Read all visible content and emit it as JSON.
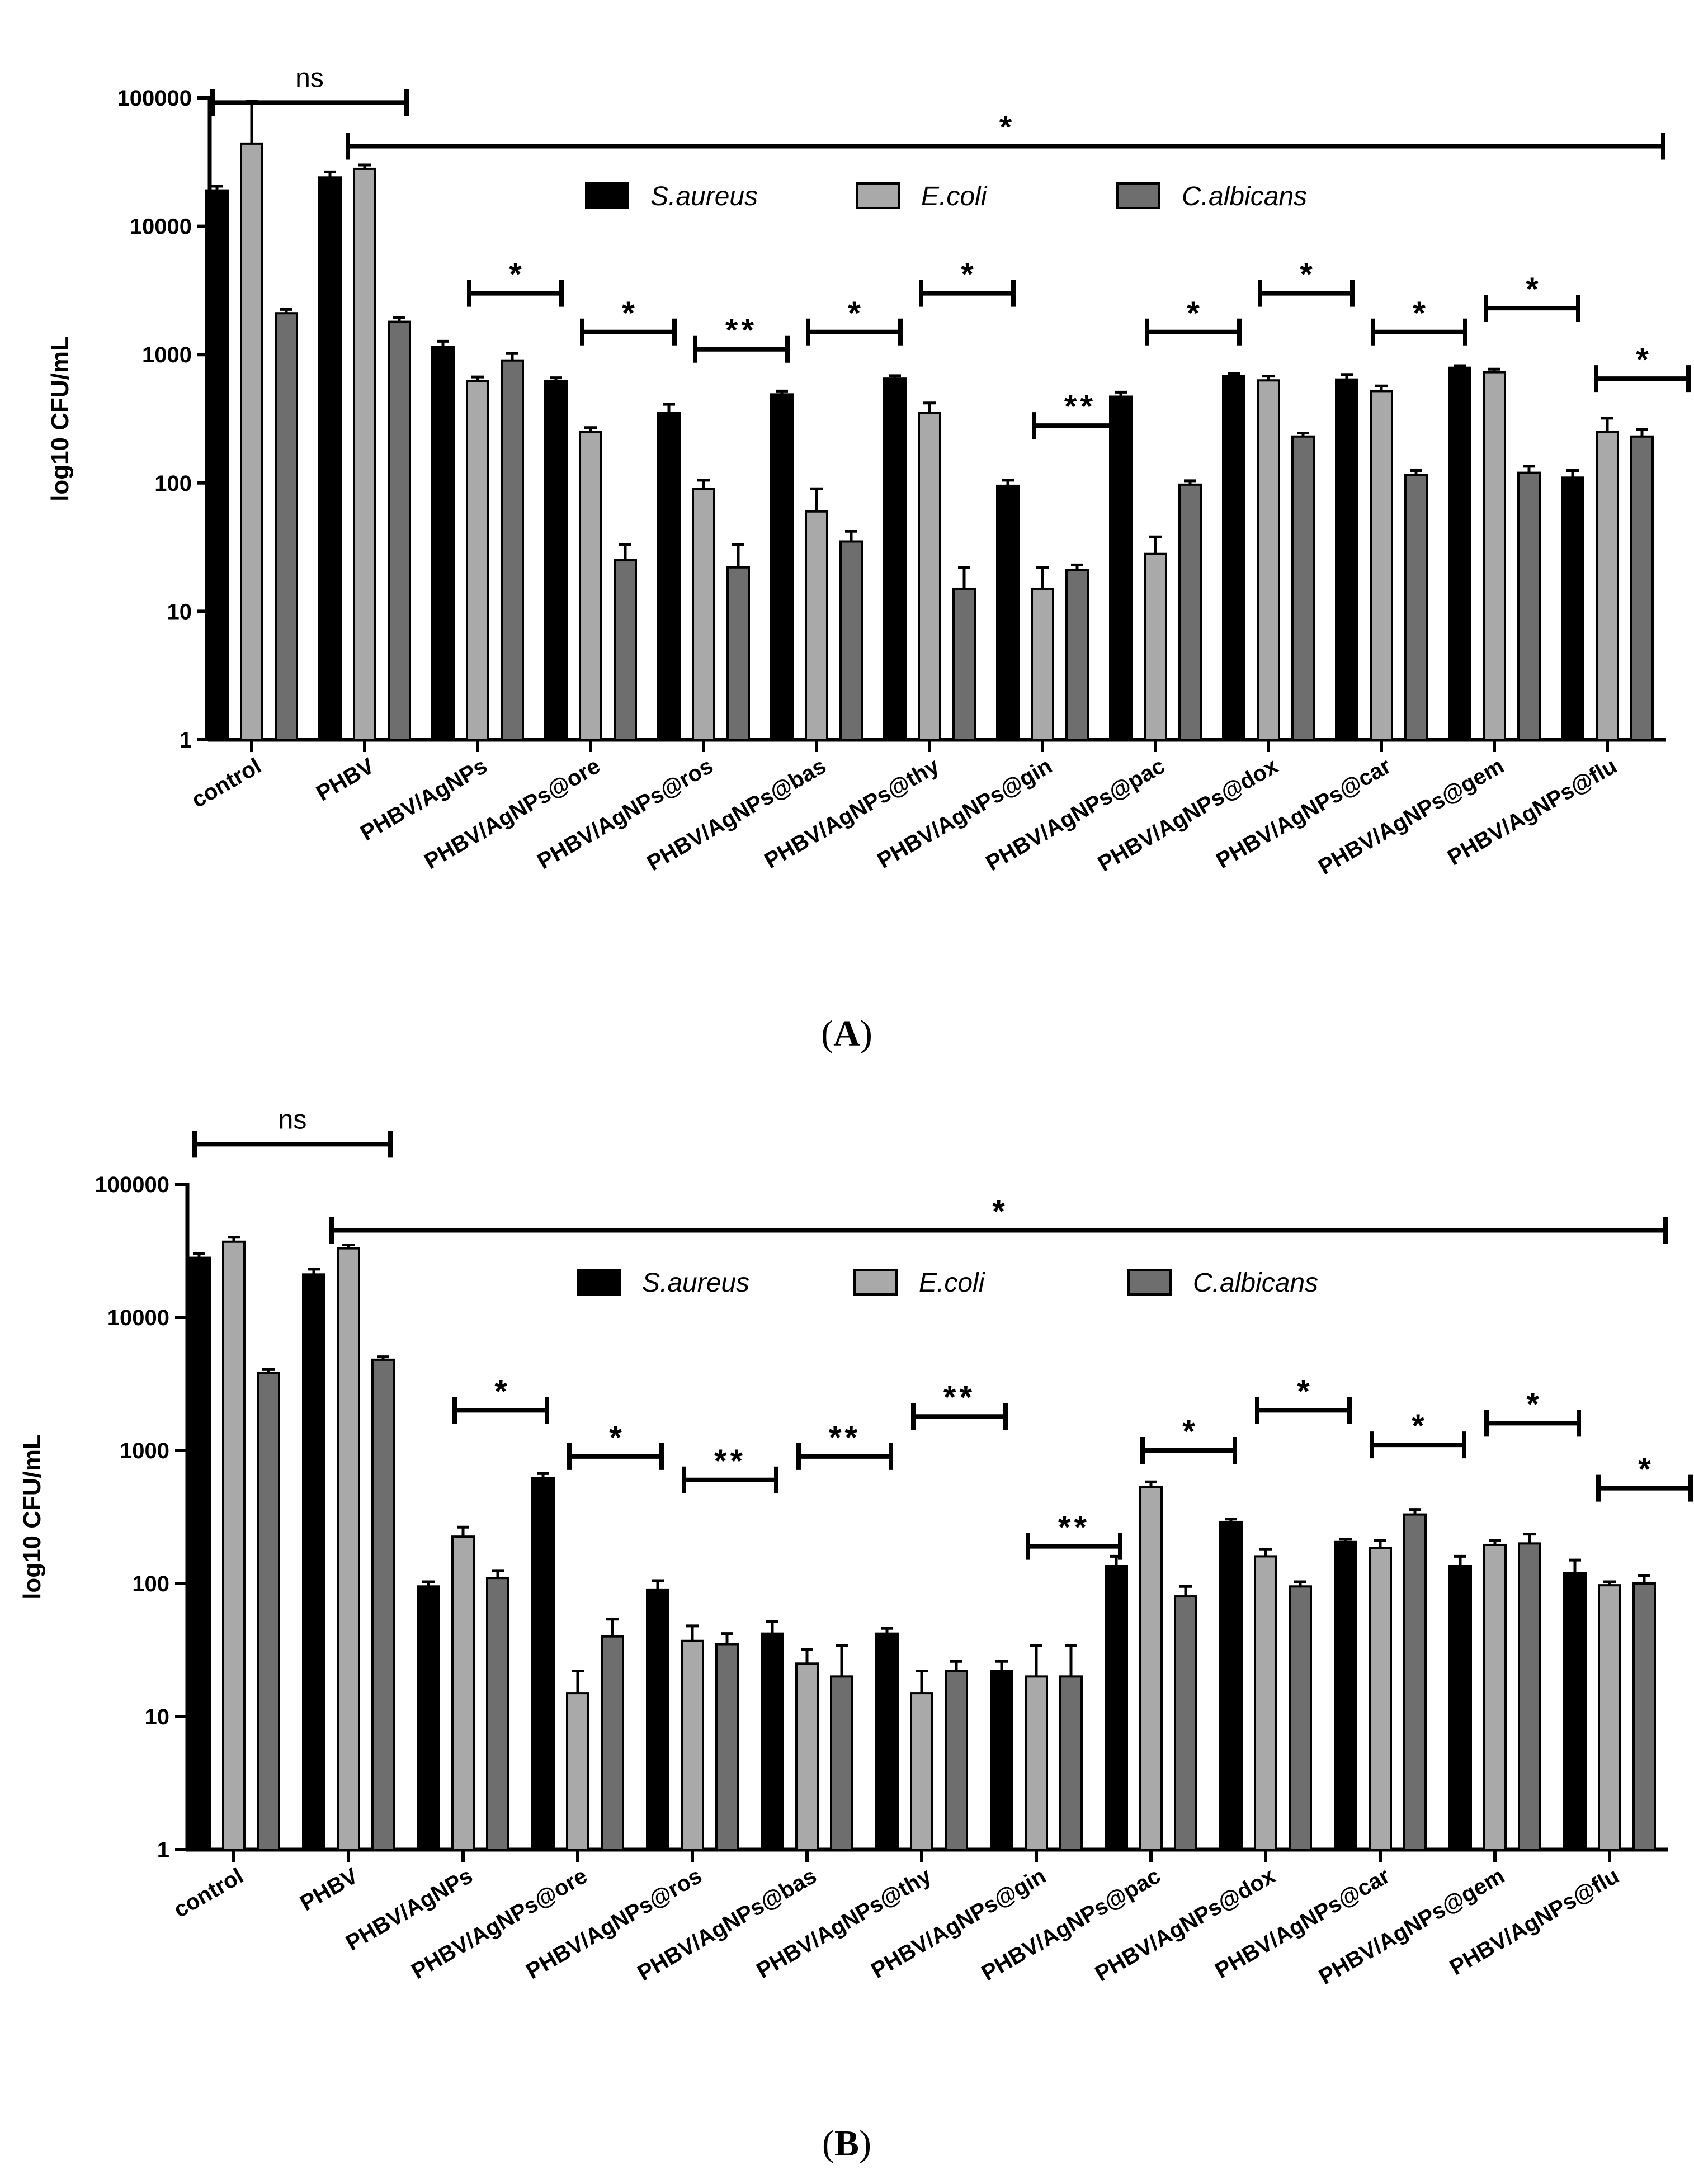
{
  "chart_data": [
    {
      "type": "bar",
      "panel_label": "(A)",
      "ylabel": "log10 CFU/mL",
      "yscale": "log",
      "ylim": [
        1,
        100000
      ],
      "yticks": [
        "1",
        "10",
        "100",
        "1000",
        "10000",
        "100000"
      ],
      "legend": [
        "S.aureus",
        "E.coli",
        "C.albicans"
      ],
      "categories": [
        "control",
        "PHBV",
        "PHBV/AgNPs",
        "PHBV/AgNPs@ore",
        "PHBV/AgNPs@ros",
        "PHBV/AgNPs@bas",
        "PHBV/AgNPs@thy",
        "PHBV/AgNPs@gin",
        "PHBV/AgNPs@pac",
        "PHBV/AgNPs@dox",
        "PHBV/AgNPs@car",
        "PHBV/AgNPs@gem",
        "PHBV/AgNPs@flu"
      ],
      "series": [
        {
          "name": "S.aureus",
          "color": "#000000",
          "values": [
            19000,
            24000,
            1150,
            620,
            350,
            490,
            650,
            95,
            470,
            680,
            640,
            790,
            110
          ],
          "errors": [
            1500,
            2500,
            120,
            40,
            60,
            30,
            35,
            10,
            40,
            30,
            60,
            30,
            15
          ]
        },
        {
          "name": "E.coli",
          "color": "#a9a9a9",
          "values": [
            44000,
            28000,
            620,
            250,
            90,
            60,
            350,
            15,
            28,
            630,
            520,
            730,
            250
          ],
          "errors": [
            50000,
            2000,
            50,
            20,
            15,
            30,
            70,
            7,
            10,
            50,
            50,
            40,
            70
          ]
        },
        {
          "name": "C.albicans",
          "color": "#6e6e6e",
          "values": [
            2100,
            1800,
            900,
            25,
            22,
            35,
            15,
            21,
            97,
            230,
            115,
            120,
            230
          ],
          "errors": [
            150,
            150,
            120,
            8,
            11,
            7,
            7,
            2,
            7,
            15,
            10,
            15,
            30
          ]
        }
      ],
      "brackets": [
        {
          "from": 0,
          "to": 1,
          "label": "ns",
          "level": 92000,
          "span": "outer"
        },
        {
          "from": 1,
          "to": 12,
          "label": "*",
          "level": 42000,
          "span": "outer"
        },
        {
          "from": 2,
          "to": 2,
          "label": "*",
          "level": 3000
        },
        {
          "from": 3,
          "to": 3,
          "label": "*",
          "level": 1500
        },
        {
          "from": 4,
          "to": 4,
          "label": "**",
          "level": 1100
        },
        {
          "from": 5,
          "to": 5,
          "label": "*",
          "level": 1500
        },
        {
          "from": 6,
          "to": 6,
          "label": "*",
          "level": 3000
        },
        {
          "from": 7,
          "to": 7,
          "label": "**",
          "level": 280
        },
        {
          "from": 8,
          "to": 8,
          "label": "*",
          "level": 1500
        },
        {
          "from": 9,
          "to": 9,
          "label": "*",
          "level": 3000
        },
        {
          "from": 10,
          "to": 10,
          "label": "*",
          "level": 1500
        },
        {
          "from": 11,
          "to": 11,
          "label": "*",
          "level": 2300
        },
        {
          "from": 12,
          "to": 12,
          "label": "*",
          "level": 650
        }
      ]
    },
    {
      "type": "bar",
      "panel_label": "(B)",
      "ylabel": "log10 CFU/mL",
      "yscale": "log",
      "ylim": [
        1,
        100000
      ],
      "yticks": [
        "1",
        "10",
        "100",
        "1000",
        "10000",
        "100000"
      ],
      "legend": [
        "S.aureus",
        "E.coli",
        "C.albicans"
      ],
      "categories": [
        "control",
        "PHBV",
        "PHBV/AgNPs",
        "PHBV/AgNPs@ore",
        "PHBV/AgNPs@ros",
        "PHBV/AgNPs@bas",
        "PHBV/AgNPs@thy",
        "PHBV/AgNPs@gin",
        "PHBV/AgNPs@pac",
        "PHBV/AgNPs@dox",
        "PHBV/AgNPs@car",
        "PHBV/AgNPs@gem",
        "PHBV/AgNPs@flu"
      ],
      "series": [
        {
          "name": "S.aureus",
          "color": "#000000",
          "values": [
            28000,
            21000,
            95,
            620,
            90,
            42,
            42,
            22,
            135,
            290,
            205,
            135,
            120
          ],
          "errors": [
            2000,
            2000,
            8,
            50,
            15,
            10,
            4,
            4,
            25,
            15,
            10,
            25,
            30
          ]
        },
        {
          "name": "E.coli",
          "color": "#a9a9a9",
          "values": [
            37000,
            33000,
            225,
            15,
            37,
            25,
            15,
            20,
            530,
            160,
            185,
            195,
            97
          ]
        },
        {
          "name": "C.albicans",
          "color": "#6e6e6e",
          "values": [
            3800,
            4800,
            110,
            40,
            35,
            20,
            22,
            20,
            80,
            95,
            330,
            200,
            100
          ]
        }
      ],
      "errors_ecoli": [
        3000,
        2000,
        40,
        7,
        11,
        7,
        7,
        14,
        50,
        20,
        25,
        15,
        6
      ],
      "errors_calbicans": [
        250,
        250,
        15,
        14,
        7,
        14,
        4,
        14,
        15,
        8,
        30,
        35,
        15
      ],
      "brackets": [
        {
          "from": 0,
          "to": 1,
          "label": "ns",
          "level": 200000,
          "span": "outer"
        },
        {
          "from": 1,
          "to": 12,
          "label": "*",
          "level": 45000,
          "span": "outer"
        },
        {
          "from": 2,
          "to": 2,
          "label": "*",
          "level": 2000
        },
        {
          "from": 3,
          "to": 3,
          "label": "*",
          "level": 900
        },
        {
          "from": 4,
          "to": 4,
          "label": "**",
          "level": 600
        },
        {
          "from": 5,
          "to": 5,
          "label": "**",
          "level": 900
        },
        {
          "from": 6,
          "to": 6,
          "label": "**",
          "level": 1800
        },
        {
          "from": 7,
          "to": 7,
          "label": "**",
          "level": 190
        },
        {
          "from": 8,
          "to": 8,
          "label": "*",
          "level": 1000
        },
        {
          "from": 9,
          "to": 9,
          "label": "*",
          "level": 2000
        },
        {
          "from": 10,
          "to": 10,
          "label": "*",
          "level": 1100
        },
        {
          "from": 11,
          "to": 11,
          "label": "*",
          "level": 1600
        },
        {
          "from": 12,
          "to": 12,
          "label": "*",
          "level": 520
        }
      ]
    }
  ]
}
